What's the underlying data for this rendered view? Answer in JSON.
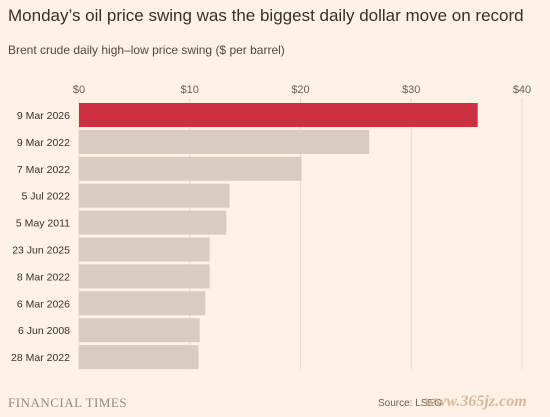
{
  "header": {
    "title": "Monday’s oil price swing was the biggest daily dollar move on record",
    "subtitle": "Brent crude daily high–low price swing ($ per barrel)"
  },
  "footer": {
    "brand": "FINANCIAL TIMES",
    "source": "Source: LSEG",
    "watermark": "www.365jz.com"
  },
  "colors": {
    "highlight": "#cc3040",
    "bar": "#d9cbbf",
    "gridline": "#e6d9ce",
    "background": "#fff1e5"
  },
  "chart_data": {
    "type": "bar",
    "orientation": "horizontal",
    "title": "Monday’s oil price swing was the biggest daily dollar move on record",
    "subtitle": "Brent crude daily high–low price swing ($ per barrel)",
    "categories": [
      "9 Mar 2026",
      "9 Mar 2022",
      "7 Mar 2022",
      "5 Jul 2022",
      "5 May 2011",
      "23 Jun 2025",
      "8 Mar 2022",
      "6 Mar 2026",
      "6 Jun 2008",
      "28 Mar 2022"
    ],
    "values": [
      36.0,
      26.2,
      20.1,
      13.6,
      13.3,
      11.8,
      11.8,
      11.4,
      10.9,
      10.8
    ],
    "highlight_index": 0,
    "xlim": [
      0,
      40
    ],
    "xticks": [
      0,
      10,
      20,
      30,
      40
    ],
    "xtick_labels": [
      "$0",
      "$10",
      "$20",
      "$30",
      "$40"
    ],
    "xlabel": "",
    "ylabel": "",
    "grid": true,
    "axis_position": "top"
  }
}
